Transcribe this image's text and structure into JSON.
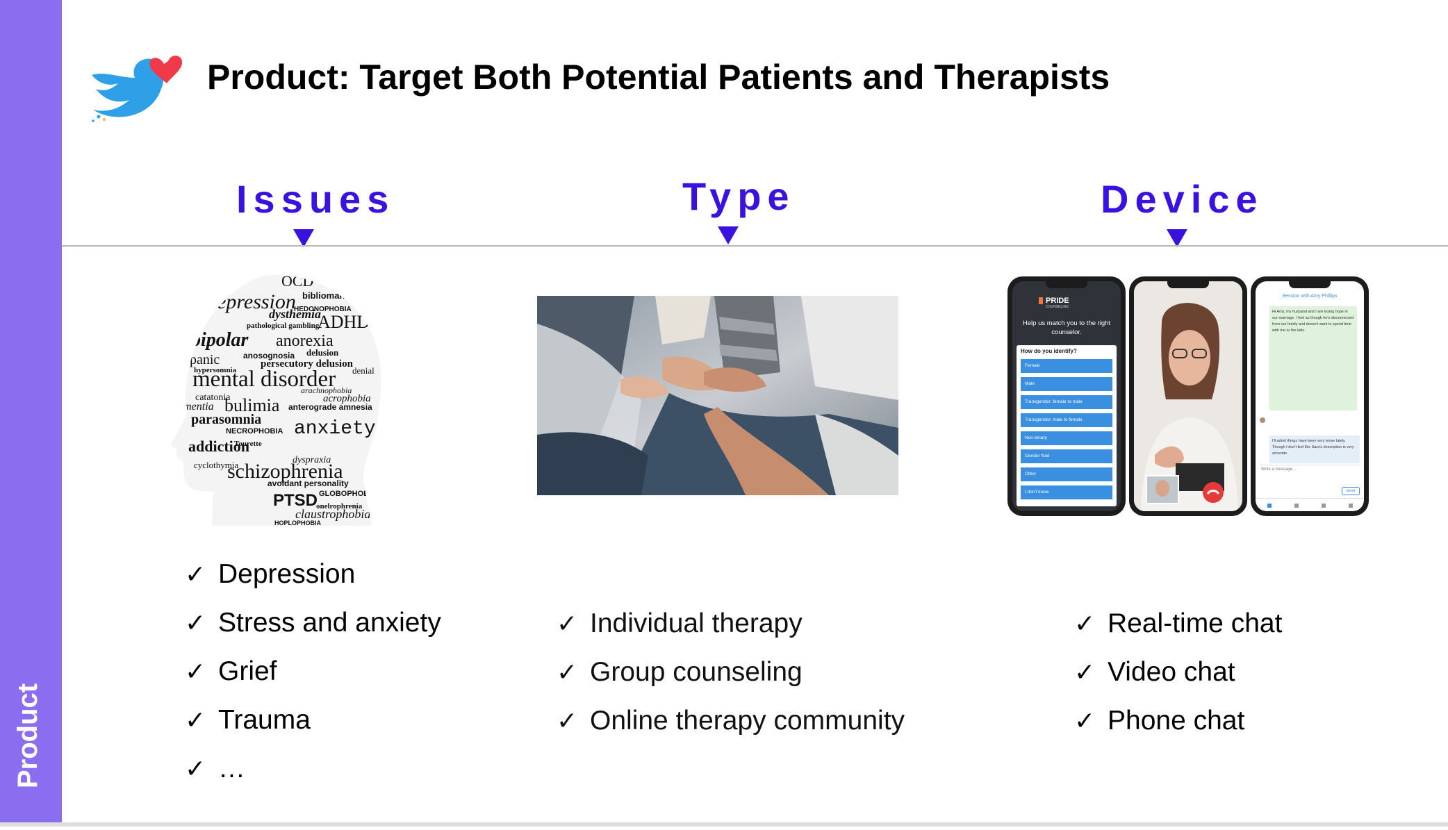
{
  "sidebar": {
    "label": "Product",
    "color": "#8b6df0"
  },
  "header": {
    "title": "Product: Target Both Potential Patients and Therapists",
    "logo_icon": "bird-heart-logo-icon"
  },
  "accent_color": "#3a12e0",
  "columns": {
    "issues": {
      "heading": "Issues",
      "items": [
        "Depression",
        "Stress and anxiety",
        "Grief",
        "Trauma",
        "…"
      ],
      "word_cloud": {
        "words": [
          "OCD",
          "depression",
          "dysthemia",
          "ADHD",
          "bibliomania",
          "HEDONOPHOBIA",
          "pathological gambling",
          "bipolar",
          "anorexia",
          "panic",
          "anosognosia",
          "persecutory delusion",
          "mental disorder",
          "bulimia",
          "parasomnia",
          "anxiety",
          "addiction",
          "schizophrenia",
          "PTSD",
          "claustrophobia",
          "dementia",
          "catatonia",
          "hypersomnia",
          "NECROPHOBIA",
          "acrophobia",
          "arachnophobia",
          "cyclothymia",
          "avoidant personality",
          "dyspraxia",
          "GLOBOPHOBIA",
          "HOPLOPHOBIA",
          "onelrophrenia",
          "anterograde amnesia",
          "denial",
          "Tourette",
          "delusion"
        ]
      }
    },
    "type": {
      "heading": "Type",
      "items": [
        "Individual therapy",
        "Group counseling",
        "Online therapy community"
      ]
    },
    "device": {
      "heading": "Device",
      "items": [
        "Real-time chat",
        "Video chat",
        "Phone chat"
      ],
      "phone1": {
        "brand": "PRIDE",
        "brand_sub": "COUNSELING",
        "prompt": "Help us match you to the right counselor.",
        "question": "How do you identify?",
        "options": [
          "Female",
          "Male",
          "Transgender: female to male",
          "Transgender: male to female",
          "Non-binary",
          "Gender fluid",
          "Other",
          "I don't know"
        ]
      },
      "phone3": {
        "header": "Session with Amy Phillips",
        "message1": "Hi Amy, my husband and I are losing hope in our marriage. I feel as though he's disconnected from our family and doesn't want to spend time with me or the kids.",
        "message2": "I'll admit things have been very tense lately. Though I don't feel like Sara's description is very accurate.",
        "input_placeholder": "Write a message...",
        "send_label": "Send"
      }
    }
  }
}
